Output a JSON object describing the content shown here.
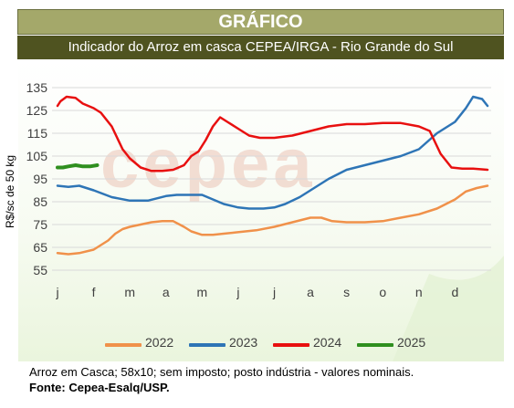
{
  "header": {
    "title": "GRÁFICO",
    "subtitle": "Indicador do Arroz em casca CEPEA/IRGA - Rio Grande do Sul"
  },
  "footer": {
    "note": "Arroz em Casca; 58x10; sem imposto; posto indústria  - valores nominais.",
    "source": "Fonte: Cepea-Esalq/USP."
  },
  "watermark": "cepea",
  "chart_data": {
    "type": "line",
    "title": "",
    "xlabel": "",
    "ylabel": "R$/sc de 50 kg",
    "x_tick_labels": [
      "j",
      "f",
      "m",
      "a",
      "m",
      "j",
      "j",
      "a",
      "s",
      "o",
      "n",
      "d"
    ],
    "y_ticks": [
      55,
      65,
      75,
      85,
      95,
      105,
      115,
      125,
      135
    ],
    "ylim": [
      55,
      135
    ],
    "xlim": [
      0,
      12
    ],
    "grid": "horizontal",
    "legend_position": "bottom",
    "series": [
      {
        "name": "2022",
        "color": "#f0914a",
        "x": [
          0,
          0.3,
          0.6,
          1.0,
          1.2,
          1.4,
          1.6,
          1.8,
          2.0,
          2.3,
          2.6,
          2.9,
          3.2,
          3.5,
          3.7,
          4.0,
          4.3,
          4.6,
          4.9,
          5.2,
          5.5,
          6.0,
          6.5,
          7.0,
          7.3,
          7.6,
          8.0,
          8.5,
          9.0,
          9.5,
          10.0,
          10.5,
          11.0,
          11.3,
          11.6,
          11.9
        ],
        "values": [
          62.5,
          62,
          62.5,
          64,
          66,
          68,
          71,
          73,
          74,
          75,
          76,
          76.5,
          76.5,
          74,
          72,
          70.5,
          70.5,
          71,
          71.5,
          72,
          72.5,
          74,
          76,
          78,
          78,
          76.5,
          76,
          76,
          76.5,
          78,
          79.5,
          82,
          86,
          89.5,
          91,
          92
        ]
      },
      {
        "name": "2023",
        "color": "#2e75b6",
        "x": [
          0,
          0.3,
          0.6,
          1.0,
          1.5,
          2.0,
          2.5,
          3.0,
          3.3,
          3.7,
          4.0,
          4.3,
          4.6,
          5.0,
          5.3,
          5.7,
          6.0,
          6.3,
          6.7,
          7.0,
          7.5,
          8.0,
          8.5,
          9.0,
          9.5,
          10.0,
          10.5,
          11.0,
          11.3,
          11.5,
          11.75,
          11.9
        ],
        "values": [
          92,
          91.5,
          92,
          90,
          87,
          85.5,
          85.5,
          87.5,
          88,
          88,
          88,
          86,
          84,
          82.5,
          82,
          82,
          82.5,
          84,
          87,
          90,
          95,
          99,
          101,
          103,
          105,
          108,
          115,
          120,
          126,
          131,
          130,
          127
        ]
      },
      {
        "name": "2024",
        "color": "#e81010",
        "x": [
          0,
          0.08,
          0.25,
          0.5,
          0.7,
          1.0,
          1.2,
          1.5,
          1.8,
          2.0,
          2.3,
          2.6,
          2.9,
          3.2,
          3.5,
          3.7,
          3.9,
          4.1,
          4.3,
          4.5,
          4.7,
          5.0,
          5.3,
          5.6,
          6.0,
          6.5,
          7.0,
          7.5,
          8.0,
          8.5,
          9.0,
          9.5,
          10.0,
          10.3,
          10.6,
          10.9,
          11.2,
          11.5,
          11.9
        ],
        "values": [
          127,
          129,
          131,
          130.5,
          128,
          126,
          124,
          118,
          108,
          104,
          100,
          98.5,
          98.5,
          99,
          101,
          105,
          107,
          112,
          118,
          122,
          120,
          117,
          114,
          113,
          113,
          114,
          116,
          118,
          119,
          119,
          119.5,
          119.5,
          118,
          116,
          106,
          100,
          99.5,
          99.5,
          99
        ]
      },
      {
        "name": "2025",
        "color": "#2f8f1f",
        "x": [
          0,
          0.15,
          0.3,
          0.5,
          0.7,
          0.9,
          1.1
        ],
        "values": [
          100,
          100,
          100.5,
          101,
          100.5,
          100.5,
          101
        ]
      }
    ]
  }
}
